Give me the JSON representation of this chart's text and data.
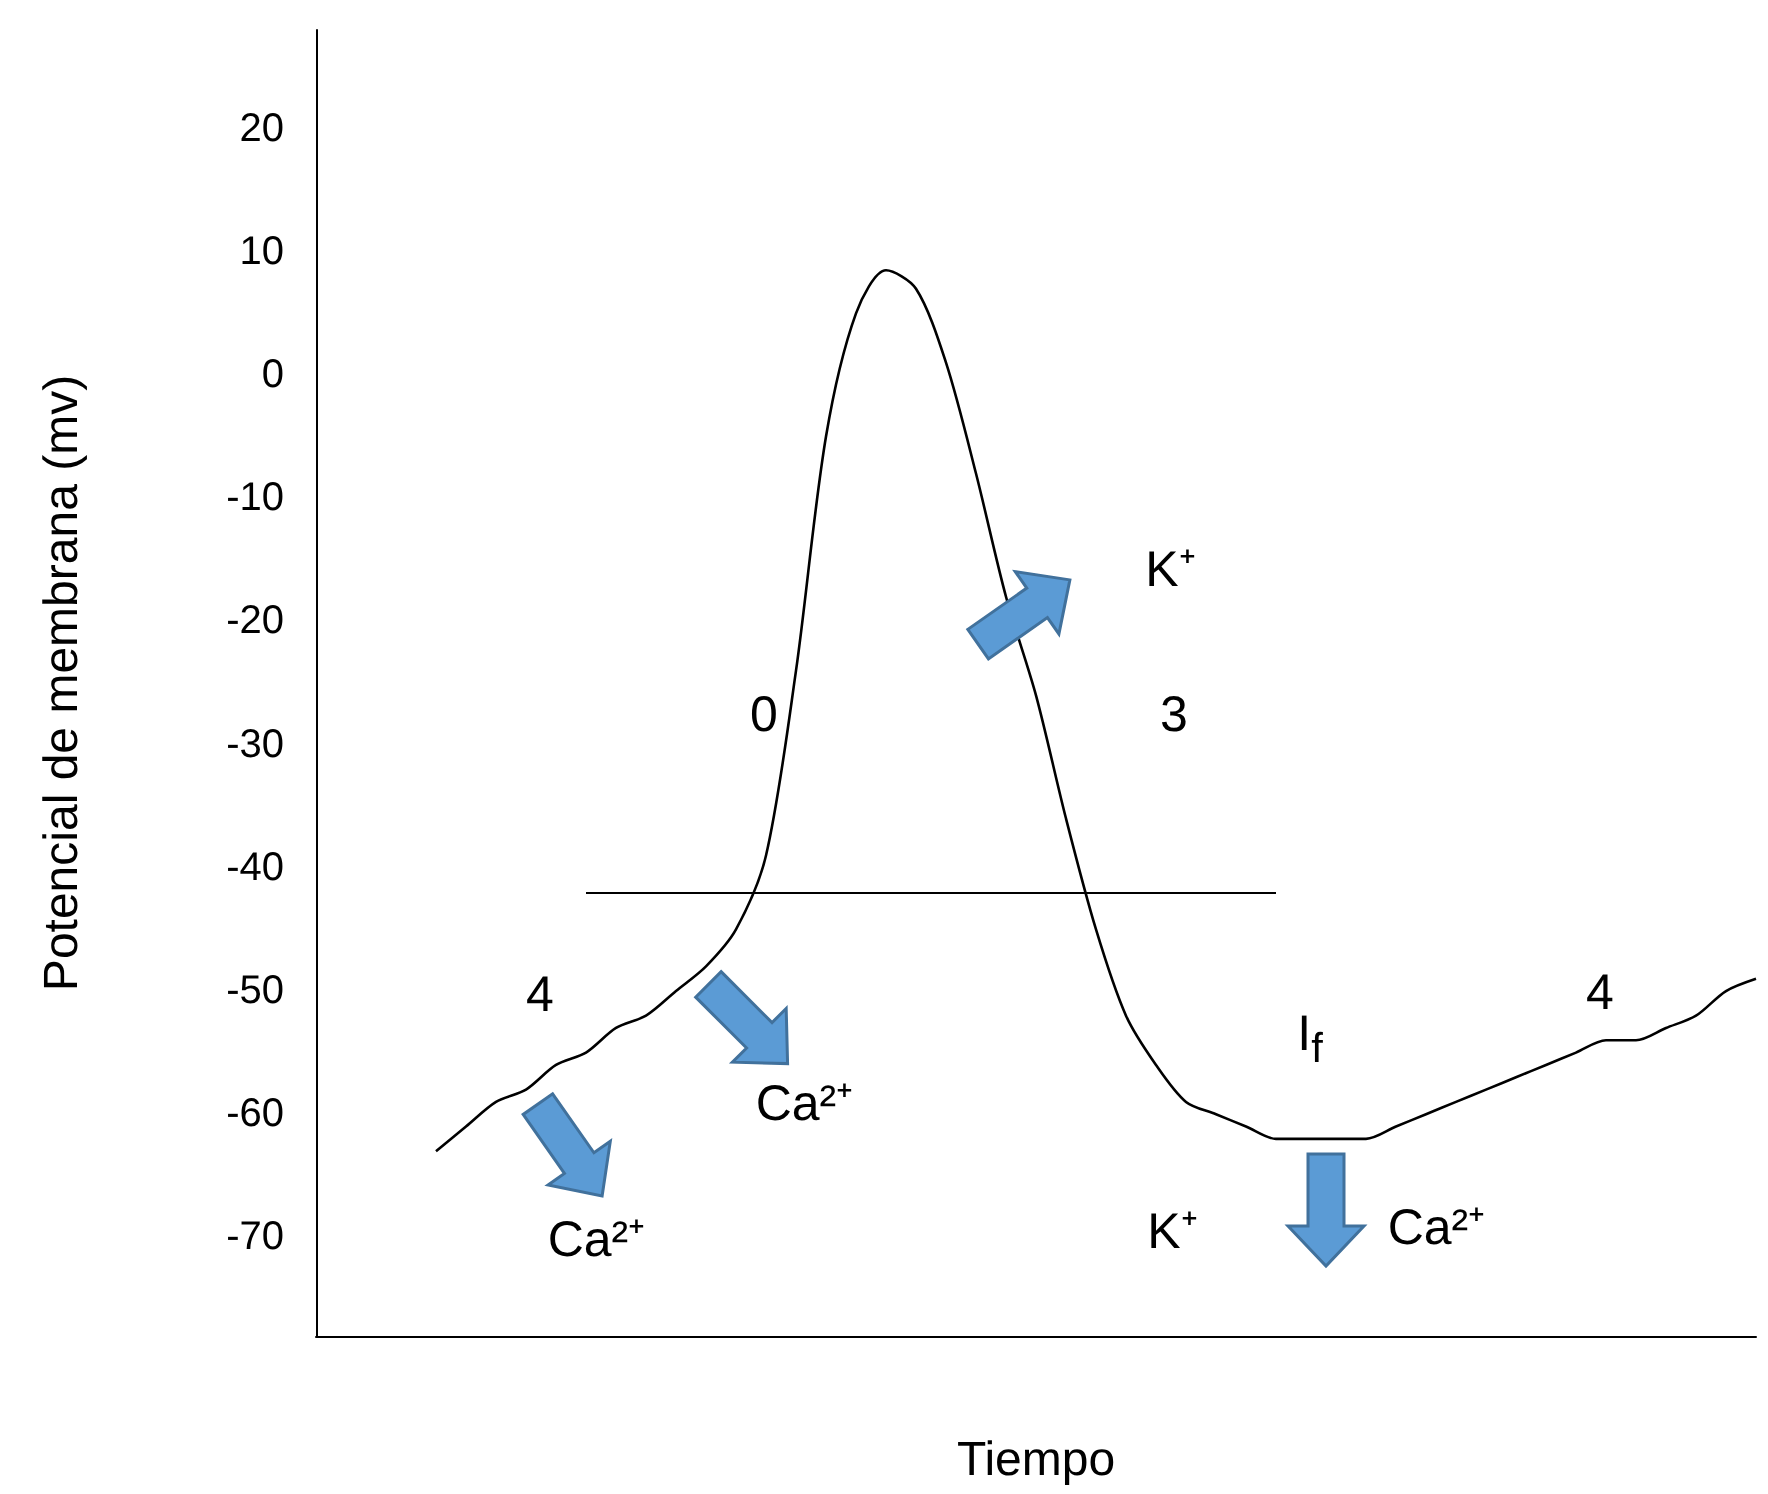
{
  "chart_data": {
    "type": "line",
    "xlabel": "Tiempo",
    "ylabel": "Potencial de membrana (mv)",
    "categories": [
      null,
      null,
      null,
      null,
      null,
      null,
      null,
      null,
      null,
      null,
      null,
      null,
      null,
      null,
      null,
      null,
      null,
      null,
      null,
      null,
      null,
      null,
      null,
      null,
      null,
      null,
      null,
      null,
      null,
      null,
      null,
      null,
      null,
      null,
      null,
      null,
      null,
      null,
      null,
      null,
      null,
      null,
      null,
      null,
      null,
      null,
      null,
      null,
      null
    ],
    "values": [
      null,
      null,
      null,
      null,
      -63,
      -61,
      -59,
      -58,
      -56,
      -55,
      -53,
      -52,
      -50,
      -48,
      -45,
      -39,
      -24,
      -5,
      5,
      8.5,
      7,
      1,
      -8,
      -18,
      -26,
      -36,
      -45,
      -52,
      -56,
      -59,
      -60,
      -61,
      -62,
      -62,
      -62,
      -62,
      -61,
      -60,
      -59,
      -58,
      -57,
      -56,
      -55,
      -54,
      -54,
      -53,
      -52,
      -50,
      -49
    ],
    "color": "#000000",
    "marker": "none",
    "tick_labels": "y",
    "ylim": [
      -78,
      28
    ],
    "yticks": [
      -70,
      -60,
      -50,
      -40,
      -30,
      -20,
      -10,
      0,
      10,
      20
    ],
    "ref_lines": [
      {
        "axis": "y",
        "value": -42,
        "color": "#000000"
      }
    ],
    "annotations": [
      "4",
      "Ca²⁺",
      "Ca²⁺",
      "0",
      "K⁺",
      "3",
      "K⁺",
      "I$_{f}$",
      "Ca²⁺",
      "4"
    ]
  }
}
